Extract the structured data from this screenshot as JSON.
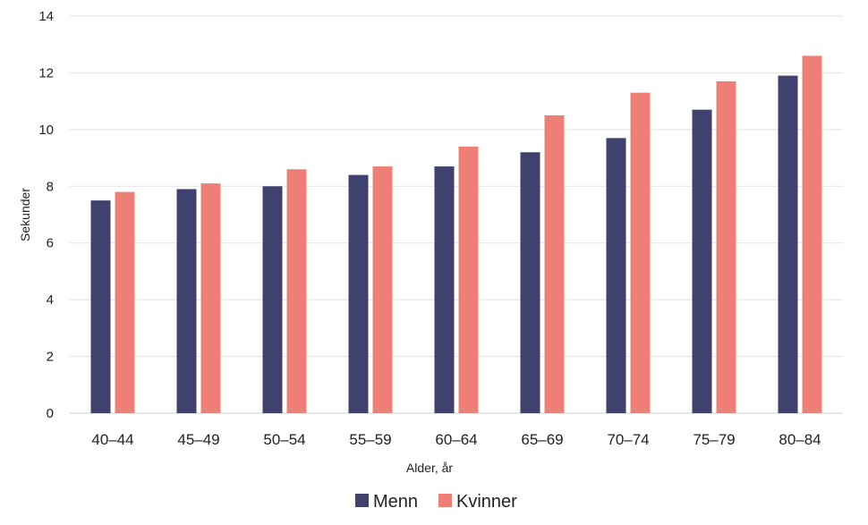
{
  "chart_data": {
    "type": "bar",
    "categories": [
      "40–44",
      "45–49",
      "50–54",
      "55–59",
      "60–64",
      "65–69",
      "70–74",
      "75–79",
      "80–84"
    ],
    "series": [
      {
        "name": "Menn",
        "color": "#3f416e",
        "values": [
          7.5,
          7.9,
          8.0,
          8.4,
          8.7,
          9.2,
          9.7,
          10.7,
          11.9
        ]
      },
      {
        "name": "Kvinner",
        "color": "#ee7f76",
        "values": [
          7.8,
          8.1,
          8.6,
          8.7,
          9.4,
          10.5,
          11.3,
          11.7,
          12.6
        ]
      }
    ],
    "xlabel": "Alder, år",
    "ylabel": "Sekunder",
    "ylim": [
      0,
      14
    ],
    "yticks": [
      0,
      2,
      4,
      6,
      8,
      10,
      12,
      14
    ],
    "grid": true,
    "legend": "bottom-center"
  }
}
